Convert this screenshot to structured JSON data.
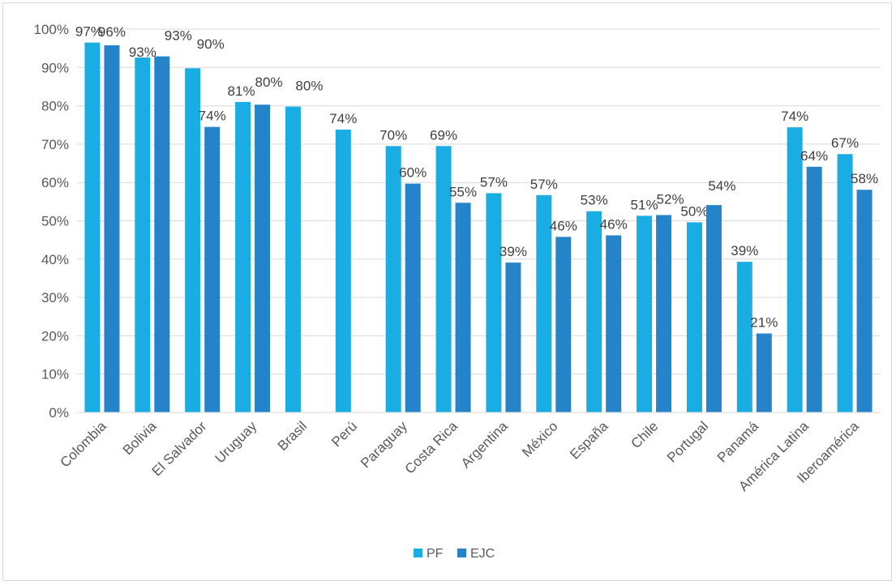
{
  "chart_data": {
    "type": "bar",
    "title": "",
    "xlabel": "",
    "ylabel": "",
    "ylim": [
      0,
      100
    ],
    "y_ticks": [
      "0%",
      "10%",
      "20%",
      "30%",
      "40%",
      "50%",
      "60%",
      "70%",
      "80%",
      "90%",
      "100%"
    ],
    "grid": true,
    "legend_position": "bottom",
    "categories": [
      "Colombia",
      "Bolivia",
      "El Salvador",
      "Uruguay",
      "Brasil",
      "Perú",
      "Paraguay",
      "Costa Rica",
      "Argentina",
      "México",
      "España",
      "Chile",
      "Portugal",
      "Panamá",
      "América Latina",
      "Iberoamérica"
    ],
    "series": [
      {
        "name": "PF",
        "color": "#1aade4",
        "values": [
          96.5,
          92.6,
          89.8,
          81,
          79.8,
          73.8,
          69.5,
          69.5,
          57.2,
          56.7,
          52.5,
          51.3,
          49.6,
          39.3,
          74.4,
          67.4
        ],
        "labels": [
          "97%",
          "93%",
          "90%",
          "81%",
          "80%",
          "74%",
          "70%",
          "69%",
          "57%",
          "57%",
          "53%",
          "51%",
          "50%",
          "39%",
          "74%",
          "67%"
        ]
      },
      {
        "name": "EJC",
        "color": "#2483c9",
        "values": [
          95.8,
          92.9,
          74.5,
          80.3,
          null,
          null,
          59.7,
          54.7,
          39.1,
          45.8,
          46.2,
          51.5,
          54.1,
          20.6,
          64.1,
          58.1
        ],
        "labels": [
          "96%",
          "93%",
          "74%",
          "80%",
          "",
          "",
          "60%",
          "55%",
          "39%",
          "46%",
          "46%",
          "52%",
          "54%",
          "21%",
          "64%",
          "58%"
        ]
      }
    ]
  }
}
